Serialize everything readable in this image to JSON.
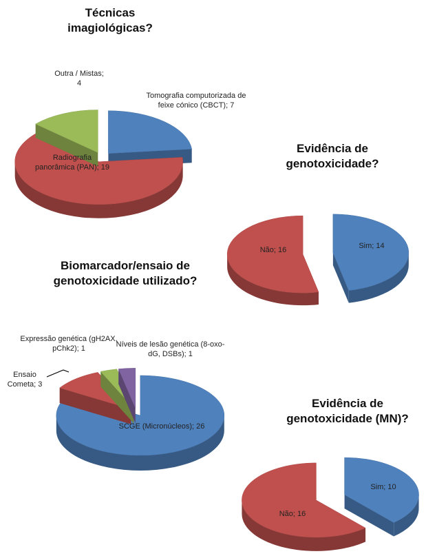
{
  "chart_data": [
    {
      "type": "pie",
      "title": "Técnicas imagiológicas?",
      "label_separator": "; ",
      "categories": [
        "Tomografia computorizada de feixe cónico (CBCT)",
        "Radiografia panorâmica (PAN)",
        "Outra / Mistas"
      ],
      "values": [
        7,
        19,
        4
      ],
      "colors": [
        "#4f81bd",
        "#c0504d",
        "#9bbb59"
      ]
    },
    {
      "type": "pie",
      "title": "Evidência de genotoxicidade?",
      "label_separator": "; ",
      "categories": [
        "Sim",
        "Não"
      ],
      "values": [
        14,
        16
      ],
      "colors": [
        "#4f81bd",
        "#c0504d"
      ]
    },
    {
      "type": "pie",
      "title": "Biomarcador/ensaio de genotoxicidade utilizado?",
      "label_separator": "; ",
      "categories": [
        "SCGE (Micronúcleos)",
        "Ensaio Cometa",
        "Expressão genética (gH2AX, pChk2)",
        "Níveis de lesão genética (8-oxo-dG, DSBs)"
      ],
      "values": [
        26,
        3,
        1,
        1
      ],
      "colors": [
        "#4f81bd",
        "#c0504d",
        "#9bbb59",
        "#8064a2"
      ]
    },
    {
      "type": "pie",
      "title": "Evidência de genotoxicidade (MN)?",
      "label_separator": "; ",
      "categories": [
        "Sim",
        "Não"
      ],
      "values": [
        10,
        16
      ],
      "colors": [
        "#4f81bd",
        "#c0504d"
      ]
    }
  ]
}
